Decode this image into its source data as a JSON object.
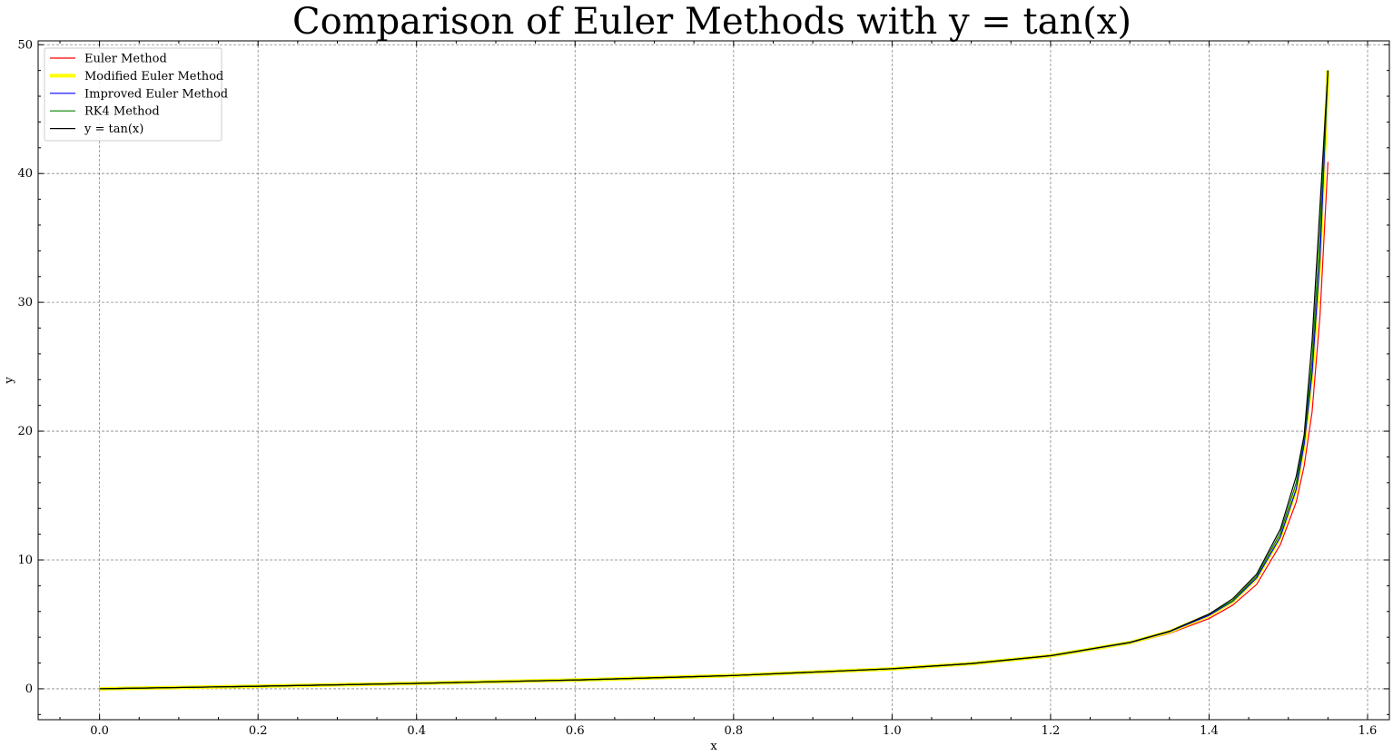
{
  "chart_data": {
    "type": "line",
    "title": "Comparison of Euler Methods with y = tan(x)",
    "xlabel": "x",
    "ylabel": "y",
    "xlim": [
      -0.0775,
      1.6275
    ],
    "ylim": [
      -2.4,
      50.3
    ],
    "xticks": [
      0.0,
      0.2,
      0.4,
      0.6,
      0.8,
      1.0,
      1.2,
      1.4,
      1.6
    ],
    "xtick_labels": [
      "0.0",
      "0.2",
      "0.4",
      "0.6",
      "0.8",
      "1.0",
      "1.2",
      "1.4",
      "1.6"
    ],
    "yticks": [
      0,
      10,
      20,
      30,
      40,
      50
    ],
    "ytick_labels": [
      "0",
      "10",
      "20",
      "30",
      "40",
      "50"
    ],
    "grid": true,
    "legend_position": "top-left",
    "series": [
      {
        "name": "Euler Method",
        "color": "#ff0000",
        "width": 1.2,
        "x": [
          0.0,
          0.2,
          0.4,
          0.6,
          0.8,
          1.0,
          1.1,
          1.2,
          1.3,
          1.35,
          1.4,
          1.43,
          1.46,
          1.49,
          1.51,
          1.52,
          1.53,
          1.54,
          1.55
        ],
        "y": [
          0.0,
          0.2,
          0.42,
          0.68,
          1.02,
          1.53,
          1.92,
          2.5,
          3.5,
          4.3,
          5.45,
          6.5,
          8.1,
          11.2,
          14.5,
          17.3,
          21.5,
          29.0,
          40.9
        ]
      },
      {
        "name": "Modified Euler Method",
        "color": "#ffff00",
        "width": 4,
        "x": [
          0.0,
          0.2,
          0.4,
          0.6,
          0.8,
          1.0,
          1.1,
          1.2,
          1.3,
          1.35,
          1.4,
          1.43,
          1.46,
          1.49,
          1.51,
          1.52,
          1.53,
          1.54,
          1.55
        ],
        "y": [
          0.0,
          0.2,
          0.42,
          0.68,
          1.03,
          1.55,
          1.95,
          2.56,
          3.58,
          4.43,
          5.7,
          6.8,
          8.6,
          11.8,
          15.5,
          19.0,
          24.5,
          33.5,
          48.0
        ]
      },
      {
        "name": "Improved Euler Method",
        "color": "#0000ff",
        "width": 1.2,
        "x": [
          0.0,
          0.2,
          0.4,
          0.6,
          0.8,
          1.0,
          1.1,
          1.2,
          1.3,
          1.35,
          1.4,
          1.43,
          1.46,
          1.49,
          1.51,
          1.52,
          1.53,
          1.54,
          1.55
        ],
        "y": [
          0.0,
          0.2,
          0.42,
          0.68,
          1.03,
          1.55,
          1.95,
          2.56,
          3.58,
          4.43,
          5.7,
          6.8,
          8.6,
          11.8,
          15.5,
          19.0,
          24.5,
          33.5,
          48.0
        ]
      },
      {
        "name": "RK4 Method",
        "color": "#008000",
        "width": 1.2,
        "x": [
          0.0,
          0.2,
          0.4,
          0.6,
          0.8,
          1.0,
          1.1,
          1.2,
          1.3,
          1.35,
          1.4,
          1.43,
          1.46,
          1.49,
          1.51,
          1.52,
          1.53,
          1.54,
          1.55
        ],
        "y": [
          0.0,
          0.2,
          0.42,
          0.68,
          1.03,
          1.56,
          1.96,
          2.57,
          3.6,
          4.46,
          5.8,
          6.85,
          8.75,
          12.1,
          16.0,
          19.4,
          25.5,
          35.5,
          48.0
        ]
      },
      {
        "name": "y = tan(x)",
        "color": "#000000",
        "width": 1.2,
        "x": [
          0.0,
          0.2,
          0.4,
          0.6,
          0.8,
          1.0,
          1.1,
          1.2,
          1.3,
          1.35,
          1.4,
          1.43,
          1.46,
          1.49,
          1.51,
          1.52,
          1.53,
          1.54,
          1.55
        ],
        "y": [
          0.0,
          0.2,
          0.42,
          0.68,
          1.03,
          1.56,
          1.96,
          2.57,
          3.6,
          4.46,
          5.8,
          7.0,
          8.9,
          12.4,
          16.5,
          19.7,
          27.0,
          37.5,
          48.0
        ]
      }
    ]
  }
}
